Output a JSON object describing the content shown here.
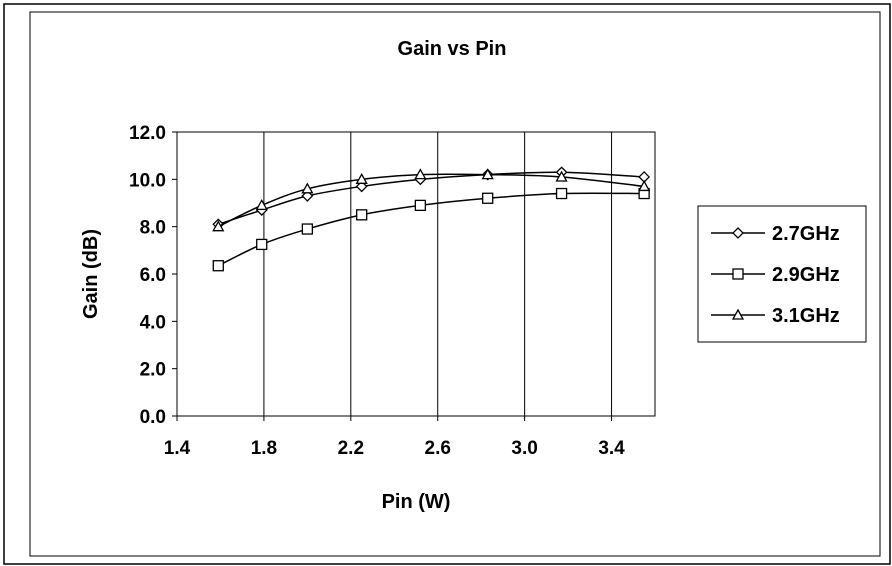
{
  "chart_data": {
    "type": "line",
    "title": "Gain vs Pin",
    "xlabel": "Pin (W)",
    "ylabel": "Gain (dB)",
    "xlim": [
      1.4,
      3.6
    ],
    "ylim": [
      0,
      12
    ],
    "x_ticks": [
      "1.4",
      "1.8",
      "2.2",
      "2.6",
      "3.0",
      "3.4"
    ],
    "y_ticks": [
      "0.0",
      "2.0",
      "4.0",
      "6.0",
      "8.0",
      "10.0",
      "12.0"
    ],
    "grid": {
      "vertical": true,
      "horizontal": false
    },
    "legend_position": "right",
    "series": [
      {
        "name": "2.7GHz",
        "marker": "diamond",
        "x": [
          1.59,
          1.79,
          2.0,
          2.25,
          2.52,
          2.83,
          3.17,
          3.55
        ],
        "y": [
          8.1,
          8.7,
          9.3,
          9.7,
          10.0,
          10.2,
          10.3,
          10.1
        ]
      },
      {
        "name": "2.9GHz",
        "marker": "square",
        "x": [
          1.59,
          1.79,
          2.0,
          2.25,
          2.52,
          2.83,
          3.17,
          3.55
        ],
        "y": [
          6.35,
          7.25,
          7.9,
          8.5,
          8.9,
          9.2,
          9.4,
          9.4
        ]
      },
      {
        "name": "3.1GHz",
        "marker": "triangle",
        "x": [
          1.59,
          1.79,
          2.0,
          2.25,
          2.52,
          2.83,
          3.17,
          3.55
        ],
        "y": [
          8.0,
          8.9,
          9.6,
          10.0,
          10.2,
          10.2,
          10.1,
          9.7
        ]
      }
    ]
  }
}
